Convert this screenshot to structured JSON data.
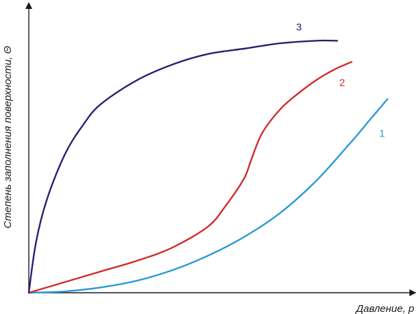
{
  "chart_data": {
    "type": "line",
    "title": "",
    "xlabel": "Давление, p",
    "ylabel": "Степень заполнения поверхности, Θ",
    "xlim": [
      0,
      1
    ],
    "ylim": [
      0,
      1
    ],
    "grid": false,
    "legend": "none",
    "axis_color": "#1a1a1a",
    "series": [
      {
        "name": "1",
        "color": "#2a9ad6",
        "x": [
          0,
          0.1,
          0.2,
          0.3,
          0.4,
          0.5,
          0.6,
          0.7,
          0.8,
          0.9,
          0.95,
          1.0
        ],
        "y": [
          0,
          0.005,
          0.02,
          0.045,
          0.085,
          0.14,
          0.21,
          0.3,
          0.42,
          0.57,
          0.65,
          0.73
        ]
      },
      {
        "name": "2",
        "color": "#d22a2a",
        "x": [
          0,
          0.1,
          0.2,
          0.3,
          0.4,
          0.5,
          0.55,
          0.6,
          0.62,
          0.65,
          0.7,
          0.75,
          0.8,
          0.85,
          0.9
        ],
        "y": [
          0,
          0.04,
          0.08,
          0.12,
          0.17,
          0.25,
          0.33,
          0.43,
          0.5,
          0.6,
          0.69,
          0.75,
          0.8,
          0.84,
          0.87
        ]
      },
      {
        "name": "3",
        "color": "#2a2070",
        "x": [
          0,
          0.02,
          0.05,
          0.1,
          0.15,
          0.2,
          0.3,
          0.4,
          0.5,
          0.6,
          0.7,
          0.8,
          0.86
        ],
        "y": [
          0,
          0.19,
          0.35,
          0.52,
          0.63,
          0.71,
          0.8,
          0.86,
          0.9,
          0.92,
          0.94,
          0.95,
          0.95
        ]
      }
    ]
  }
}
